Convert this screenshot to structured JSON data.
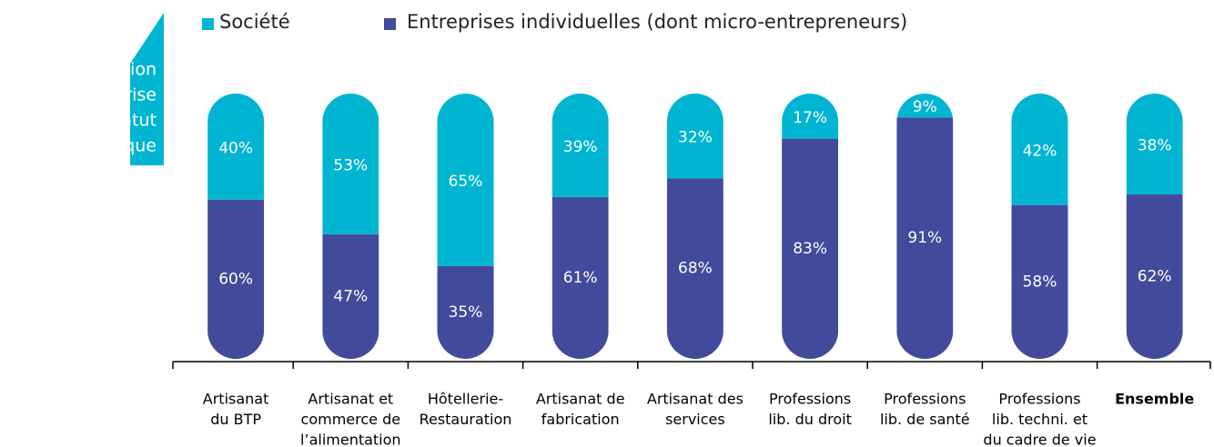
{
  "chart_data": {
    "type": "stacked_bar",
    "title": [
      "Répartition",
      "des entreprise",
      "par statut",
      "juridique"
    ],
    "categories": [
      [
        "Artisanat",
        "du BTP"
      ],
      [
        "Artisanat et",
        "commerce de",
        "l’alimentation"
      ],
      [
        "Hôtellerie-",
        "Restauration"
      ],
      [
        "Artisanat de",
        "fabrication"
      ],
      [
        "Artisanat des",
        "services"
      ],
      [
        "Professions",
        "lib. du droit"
      ],
      [
        "Professions",
        "lib. de santé"
      ],
      [
        "Professions",
        "lib. techni. et",
        "du cadre de vie"
      ],
      [
        "Ensemble"
      ]
    ],
    "series": [
      {
        "name": "Société",
        "color": "#00b5d1",
        "values": [
          40,
          53,
          65,
          39,
          32,
          17,
          9,
          42,
          38
        ],
        "value_labels": [
          "40%",
          "53%",
          "65%",
          "39%",
          "32%",
          "17%",
          "9%",
          "42%",
          "38%"
        ]
      },
      {
        "name": "Entreprises individuelles (dont micro-entrepreneurs)",
        "color": "#424a9b",
        "values": [
          60,
          47,
          35,
          61,
          68,
          83,
          91,
          58,
          62
        ],
        "value_labels": [
          "60%",
          "47%",
          "35%",
          "61%",
          "68%",
          "83%",
          "91%",
          "58%",
          "62%"
        ]
      }
    ],
    "ylim": [
      0,
      100
    ]
  }
}
